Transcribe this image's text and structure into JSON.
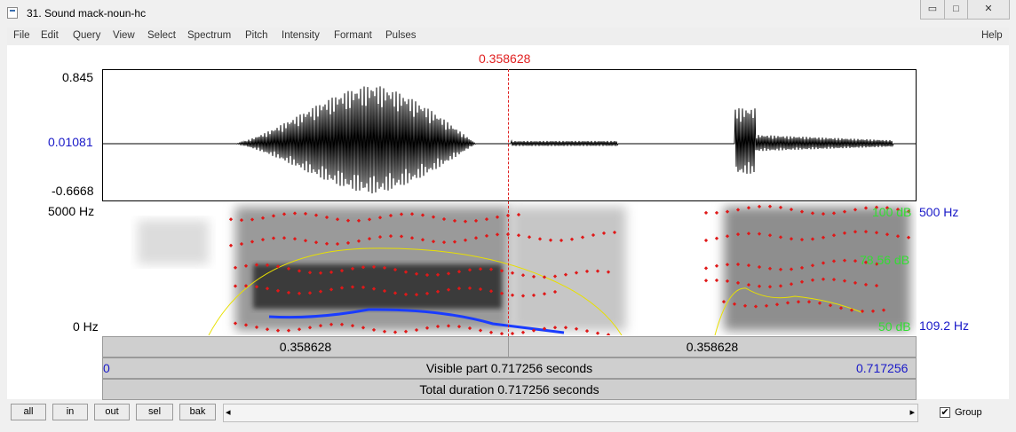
{
  "window": {
    "title": "31. Sound mack-noun-hc",
    "minimize_glyph": "▭",
    "maximize_glyph": "□",
    "close_glyph": "✕"
  },
  "menu": {
    "items": [
      "File",
      "Edit",
      "Query",
      "View",
      "Select",
      "Spectrum",
      "Pitch",
      "Intensity",
      "Formant",
      "Pulses"
    ],
    "help": "Help"
  },
  "cursor": {
    "time": "0.358628",
    "color": "#e02020"
  },
  "waveform": {
    "max": "0.845",
    "mid": "0.01081",
    "min": "-0.6668"
  },
  "spectrogram": {
    "top_freq": "5000 Hz",
    "bottom_freq": "0 Hz",
    "intensity_max": "100 dB",
    "intensity_mid": "78.56 dB",
    "intensity_min": "50 dB",
    "pitch_max": "500 Hz",
    "pitch_min": "109.2 Hz",
    "colors": {
      "formant": "#e01818",
      "intensity": "#e8e000",
      "pitch": "#1a3cff",
      "intensity_label": "#33dd33",
      "pitch_label": "#1919c8"
    }
  },
  "time_bars": {
    "left_part": "0.358628",
    "right_part": "0.358628",
    "visible_start": "0",
    "visible_label": "Visible part 0.717256 seconds",
    "visible_end": "0.717256",
    "total_label": "Total duration 0.717256 seconds"
  },
  "bottom": {
    "buttons": [
      "all",
      "in",
      "out",
      "sel",
      "bak"
    ],
    "scroll_left": "◂",
    "scroll_right": "▸",
    "group_label": "Group",
    "group_checked": true,
    "check_glyph": "✔"
  }
}
